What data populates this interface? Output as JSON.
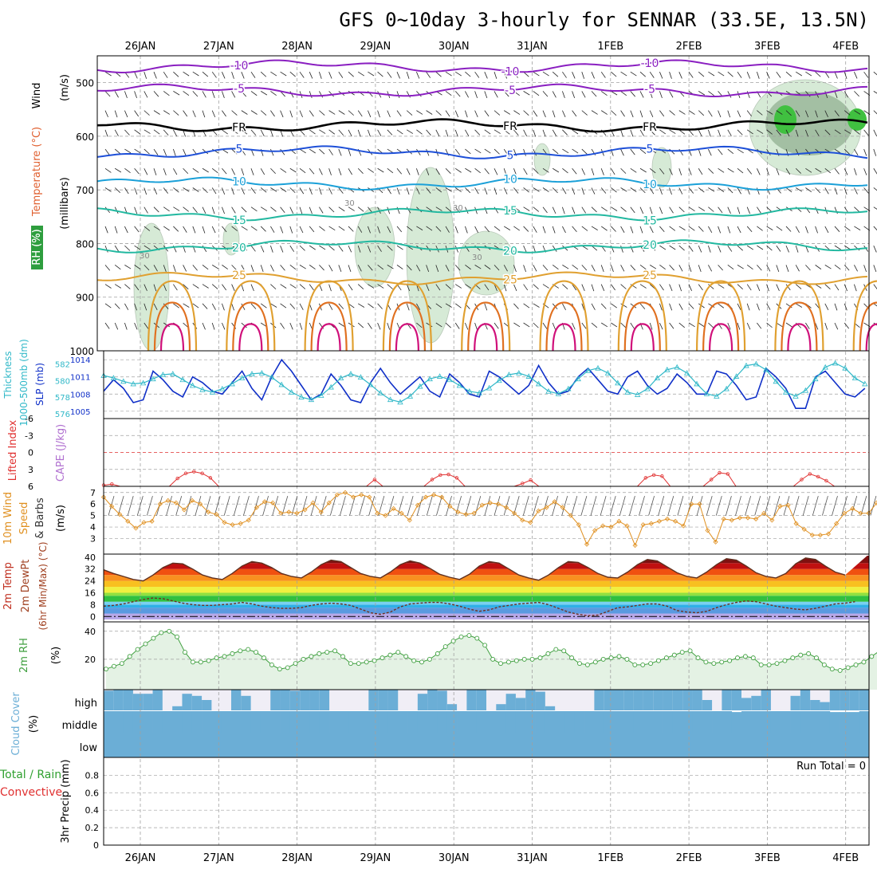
{
  "title": "GFS 0~10day 3-hourly for SENNAR (33.5E, 13.5N)",
  "dates": [
    "26JAN",
    "27JAN",
    "28JAN",
    "29JAN",
    "30JAN",
    "31JAN",
    "1FEB",
    "2FEB",
    "3FEB",
    "4FEB"
  ],
  "colors": {
    "grid": "#a0a0a0",
    "temp_purple": "#8a1fc1",
    "temp_blue": "#1d4fd8",
    "temp_lblue": "#1ba0d8",
    "temp_teal": "#22b8a0",
    "temp_orange": "#e0a030",
    "temp_dorange": "#e07020",
    "temp_magenta": "#d0107a",
    "rh_fill": "#d6ead6",
    "rh_dark": "#7a9a7a",
    "rh_green": "#40c040",
    "slp": "#1030c8",
    "thick": "#30b8c8",
    "li": "#e03030",
    "wind10": "#e09020",
    "rh2m": "#40a040",
    "cloud": "#6baed6",
    "cloud_blank": "#f0eef6"
  },
  "chart_data": [
    {
      "type": "line",
      "panel": "upper-air",
      "ylabel": [
        "RH (%)",
        "Temperature (°C)",
        "Wind",
        "(m/s)",
        "(millibars)"
      ],
      "y_ticks": [
        500,
        600,
        700,
        800,
        900,
        1000
      ],
      "ylim": [
        450,
        1000
      ],
      "isotherms": [
        {
          "label": "-10",
          "pressure": 470,
          "color": "temp_purple"
        },
        {
          "label": "-5",
          "pressure": 515,
          "color": "temp_purple"
        },
        {
          "label": "FR",
          "pressure": 580,
          "color": "black"
        },
        {
          "label": "5",
          "pressure": 630,
          "color": "temp_blue"
        },
        {
          "label": "10",
          "pressure": 688,
          "color": "temp_lblue"
        },
        {
          "label": "15",
          "pressure": 745,
          "color": "temp_teal"
        },
        {
          "label": "20",
          "pressure": 805,
          "color": "temp_teal"
        },
        {
          "label": "25",
          "pressure": 865,
          "color": "temp_orange"
        }
      ],
      "rh_labels": [
        "30",
        "30",
        "30",
        "30"
      ]
    },
    {
      "type": "line",
      "panel": "slp-thickness",
      "ylabel_left": "Thickness 1000-500mb (dm)",
      "ylabel_right": "SLP (mb)",
      "thickness_ticks": [
        576,
        578,
        580,
        582
      ],
      "slp_ticks": [
        1005,
        1008,
        1011,
        1014
      ],
      "slp": [
        1008.5,
        1010.5,
        1009,
        1006.5,
        1007,
        1012,
        1010.5,
        1008.5,
        1007.5,
        1011,
        1010,
        1008.5,
        1008,
        1010,
        1012,
        1009,
        1007,
        1011,
        1014,
        1012,
        1009.5,
        1007,
        1008,
        1011.5,
        1009.5,
        1007,
        1006.5,
        1010,
        1012.5,
        1010,
        1008,
        1009.5,
        1011,
        1008.5,
        1007.5,
        1011.5,
        1010,
        1008,
        1007.5,
        1012,
        1011,
        1009.5,
        1008,
        1009.5,
        1013,
        1010,
        1008,
        1008.5,
        1011,
        1012.5,
        1010.5,
        1008.5,
        1008,
        1011,
        1012,
        1009.5,
        1008,
        1009,
        1011.5,
        1010,
        1008,
        1008,
        1012,
        1011.5,
        1009.5,
        1007,
        1007.5,
        1012.5,
        1011,
        1009,
        1005.5,
        1005.5,
        1011,
        1012,
        1010,
        1008,
        1007.5,
        1009
      ],
      "thickness": [
        580.6,
        580.3,
        579.9,
        579.6,
        579.7,
        580.2,
        580.7,
        580.8,
        580.1,
        579.4,
        578.9,
        578.6,
        579,
        579.6,
        580.3,
        580.8,
        580.9,
        580.4,
        579.5,
        578.6,
        578,
        577.7,
        578.2,
        579.2,
        580.3,
        580.8,
        580.4,
        579.5,
        578.5,
        577.7,
        577.4,
        578.1,
        579.3,
        580.2,
        580.5,
        580.1,
        579.4,
        578.7,
        578.5,
        579.1,
        580,
        580.7,
        580.9,
        580.5,
        579.6,
        578.7,
        578.4,
        579,
        580.2,
        581.2,
        581.5,
        580.9,
        579.7,
        578.6,
        578.3,
        579,
        580.3,
        581.3,
        581.6,
        580.9,
        579.6,
        578.4,
        578.1,
        579,
        580.5,
        581.8,
        582,
        581.3,
        579.9,
        578.6,
        578.1,
        578.8,
        580.2,
        581.6,
        582.1,
        581.5,
        580.3,
        579.6
      ]
    },
    {
      "type": "line",
      "panel": "instability",
      "ylabel": [
        "Lifted Index",
        "CAPE (J/kg)"
      ],
      "li_ticks": [
        -6,
        -3,
        0,
        3,
        6
      ],
      "lifted_index": [
        5.8,
        5.6,
        6,
        6,
        6,
        6,
        6,
        6,
        6,
        4.6,
        3.7,
        3.4,
        3.7,
        4.5,
        6,
        6,
        6,
        6,
        6,
        6,
        6,
        6,
        6,
        6,
        6,
        6,
        6,
        6,
        6,
        6,
        6,
        6,
        6,
        4.8,
        6,
        6,
        6,
        6,
        6,
        6,
        4.8,
        4,
        3.9,
        4.5,
        6,
        6,
        6,
        6,
        6,
        6,
        6,
        5.5,
        4.9,
        6,
        6,
        6,
        6,
        6,
        6,
        6,
        6,
        6,
        6,
        6,
        6,
        6,
        4.5,
        4,
        4.2,
        6,
        6,
        6,
        6,
        6,
        4.8,
        3.6,
        3.8,
        6,
        6,
        6,
        6,
        6,
        6,
        6,
        6,
        4.8,
        3.8,
        4.3,
        5,
        6,
        6,
        6,
        6,
        6
      ]
    },
    {
      "type": "line",
      "panel": "wind10m",
      "ylabel": [
        "10m Wind",
        "Speed",
        "& Barbs",
        "(m/s)"
      ],
      "y_ticks": [
        3,
        4,
        5,
        6,
        7
      ],
      "speed": [
        6.6,
        5.8,
        5.1,
        4.5,
        3.9,
        4.4,
        4.5,
        6,
        6.3,
        6.1,
        5.5,
        6.3,
        6,
        5.3,
        5.1,
        4.4,
        4.2,
        4.3,
        4.6,
        5.7,
        6.2,
        6.1,
        5.2,
        5.3,
        5.2,
        5.5,
        6.1,
        5.3,
        6.1,
        6.8,
        7,
        6.6,
        6.8,
        6.6,
        5.2,
        5,
        5.6,
        5.2,
        4.6,
        5.9,
        6.6,
        6.8,
        6.6,
        5.8,
        5.3,
        5.1,
        5.2,
        5.9,
        6.1,
        6,
        5.7,
        5.2,
        4.6,
        4.4,
        5.4,
        5.7,
        6.2,
        5.7,
        5,
        4.2,
        2.5,
        3.7,
        4.1,
        4,
        4.5,
        4.1,
        2.4,
        4.2,
        4.3,
        4.5,
        4.7,
        4.5,
        4.1,
        6,
        6,
        3.7,
        2.7,
        4.7,
        4.6,
        4.8,
        4.8,
        4.7,
        5.2,
        4.6,
        5.8,
        5.9,
        4.3,
        3.8,
        3.3,
        3.3,
        3.4,
        4.3,
        5.2,
        5.6,
        5.2,
        5.2,
        6.1,
        5.7
      ]
    },
    {
      "type": "area",
      "panel": "temperature",
      "ylabel": [
        "2m Temp",
        "2m DewPt",
        "(6hr Min/Max) (°C)"
      ],
      "y_ticks": [
        0,
        8,
        16,
        24,
        32,
        40
      ],
      "temp": [
        31.5,
        29,
        27,
        25,
        24,
        28,
        33,
        36,
        35.5,
        32,
        28,
        26,
        25,
        29,
        34,
        37,
        36,
        33,
        29,
        27,
        26,
        30,
        35,
        38,
        37,
        33,
        29,
        27,
        26,
        30,
        35,
        37.5,
        36,
        32.5,
        28.5,
        26.5,
        25,
        28.5,
        34,
        37,
        36,
        32,
        28,
        26,
        24.5,
        28,
        33,
        37,
        36.5,
        33,
        29,
        26.5,
        26,
        30,
        35,
        38.5,
        37.5,
        33.5,
        29.5,
        27,
        26,
        30,
        35,
        39,
        38,
        34,
        29.5,
        27,
        26,
        29,
        35.5,
        39.5,
        38.5,
        34,
        30,
        28
      ],
      "dewpoint": [
        7,
        7.5,
        8.5,
        10,
        11.5,
        12.5,
        12,
        10.5,
        9,
        8,
        7.5,
        7.5,
        8,
        8.5,
        9.5,
        8.5,
        7,
        6,
        5.5,
        5.5,
        6,
        7.5,
        8.5,
        9,
        8.5,
        7.5,
        5,
        2.5,
        1.5,
        3,
        6.5,
        8.5,
        9,
        9.5,
        9.5,
        8.5,
        7,
        5,
        3.5,
        4.5,
        6.5,
        7.5,
        8.5,
        9,
        9.5,
        8,
        5.5,
        3,
        1.5,
        0.5,
        1,
        3.5,
        6,
        6.5,
        7.5,
        8.5,
        8.5,
        7,
        4,
        3,
        2.5,
        3.5,
        6,
        8,
        9.5,
        10.5,
        10,
        8.5,
        7,
        6,
        5,
        4.5,
        5.5,
        7,
        8.5,
        9,
        10
      ]
    },
    {
      "type": "area",
      "panel": "rh2m",
      "ylabel": [
        "2m RH",
        "(%)"
      ],
      "y_ticks": [
        20,
        40
      ],
      "rh": [
        13,
        15,
        17,
        22,
        27,
        31,
        35,
        39,
        40,
        36,
        25,
        18,
        18,
        19,
        21,
        22,
        24,
        26,
        27,
        25,
        21,
        16,
        13,
        14,
        17,
        20,
        22,
        24,
        25,
        26,
        22,
        17,
        17,
        18,
        19,
        21,
        23,
        25,
        22,
        19,
        18,
        20,
        24,
        29,
        33,
        36,
        37,
        35,
        30,
        20,
        17,
        18,
        19,
        20,
        20,
        21,
        24,
        27,
        26,
        21,
        17,
        16,
        18,
        20,
        21,
        22,
        20,
        16,
        16,
        17,
        19,
        21,
        23,
        25,
        26,
        21,
        18,
        17,
        18,
        19,
        21,
        22,
        21,
        16,
        16,
        17,
        19,
        21,
        23,
        24,
        21,
        16,
        13,
        12,
        14,
        16,
        18,
        22,
        26,
        25
      ]
    },
    {
      "type": "area",
      "panel": "cloud",
      "ylabel": [
        "Cloud Cover",
        "(%)"
      ],
      "levels": [
        "high",
        "middle",
        "low"
      ],
      "high": [
        95,
        100,
        100,
        80,
        80,
        100,
        0,
        20,
        80,
        70,
        50,
        0,
        0,
        100,
        70,
        0,
        0,
        100,
        100,
        95,
        100,
        100,
        100,
        0,
        0,
        0,
        0,
        100,
        100,
        100,
        0,
        0,
        80,
        100,
        95,
        30,
        0,
        100,
        100,
        0,
        30,
        80,
        60,
        100,
        90,
        20,
        0,
        0,
        0,
        0,
        100,
        100,
        100,
        100,
        100,
        100,
        100,
        100,
        100,
        100,
        100,
        50,
        0,
        100,
        100,
        60,
        70,
        100,
        0,
        0,
        70,
        100,
        50,
        40,
        100,
        100,
        100,
        100
      ],
      "middle": [
        100,
        100,
        100,
        100,
        100,
        100,
        100,
        100,
        100,
        100,
        100,
        100,
        100,
        100,
        100,
        100,
        100,
        100,
        100,
        100,
        100,
        100,
        100,
        100,
        100,
        100,
        100,
        100,
        100,
        100,
        100,
        100,
        100,
        100,
        100,
        100,
        100,
        100,
        100,
        100,
        100,
        100,
        100,
        100,
        100,
        100,
        100,
        100,
        100,
        100,
        100,
        100,
        100,
        100,
        100,
        100,
        100,
        100,
        100,
        100,
        100,
        100,
        100,
        100,
        96,
        100,
        100,
        100,
        100,
        100,
        100,
        100,
        100,
        100,
        96,
        96,
        96,
        100
      ]
    },
    {
      "type": "line",
      "panel": "precip",
      "ylabel": [
        "Total / Rain",
        "Convective",
        "3hr Precip (mm)"
      ],
      "y_ticks": [
        0,
        0.2,
        0.4,
        0.6,
        0.8
      ],
      "run_total_label": "Run Total = 0",
      "values": []
    }
  ]
}
